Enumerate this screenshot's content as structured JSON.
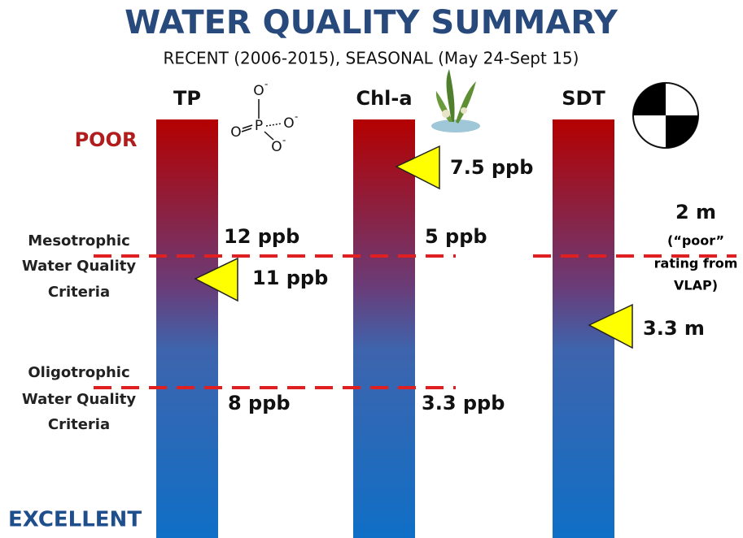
{
  "title": "WATER QUALITY SUMMARY",
  "subtitle": "RECENT (2006-2015), SEASONAL (May 24-Sept 15)",
  "scale": {
    "top": "POOR",
    "bottom": "EXCELLENT"
  },
  "criteria": [
    {
      "lines": [
        "Mesotrophic",
        "Water Quality",
        "Criteria"
      ]
    },
    {
      "lines": [
        "Oligotrophic",
        "Water Quality",
        "Criteria"
      ]
    }
  ],
  "parameters": [
    {
      "name": "TP",
      "mesotrophic": "12 ppb",
      "oligotrophic": "8 ppb",
      "current": "11 ppb"
    },
    {
      "name": "Chl-a",
      "mesotrophic": "5 ppb",
      "oligotrophic": "3.3 ppb",
      "current": "7.5 ppb"
    },
    {
      "name": "SDT",
      "mesotrophic": "2 m",
      "note": [
        "(“poor”",
        "rating from",
        "VLAP)"
      ],
      "current": "3.3 m"
    }
  ],
  "phosphate": {
    "atoms": [
      "O",
      "O",
      "P",
      "O",
      "O"
    ],
    "charges": [
      "-",
      "-",
      "-"
    ]
  }
}
